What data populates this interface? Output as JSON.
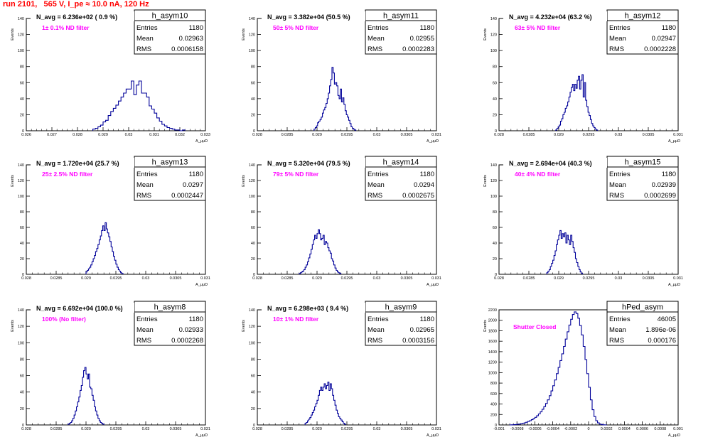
{
  "title": "run 2101,   565 V, I_pe ≈ 10.0 nA, 120 Hz",
  "colors": {
    "title": "#ff0000",
    "hist": "#000099",
    "annotation": "#ff00ff",
    "axis": "#000000"
  },
  "chart_data": [
    {
      "type": "histogram",
      "name": "h_asym10",
      "stats": {
        "entries": "1180",
        "mean": "0.02963",
        "rms": "0.0006158"
      },
      "n_avg": "N_avg = 6.236e+02 ( 0.9 %)",
      "annotation": "1± 0.1% ND filter",
      "ylabel": "Events",
      "xlabel": "A_μμD",
      "xlim": [
        0.026,
        0.033
      ],
      "ylim": [
        0,
        140
      ],
      "yticks": [
        "0",
        "20",
        "40",
        "60",
        "80",
        "100",
        "120",
        "140"
      ],
      "xticks": [
        "0.026",
        "0.027",
        "0.028",
        "0.029",
        "0.03",
        "0.031",
        "0.032",
        "0.033"
      ],
      "bins_x0": 0.0286,
      "bin_width": 0.0001,
      "values": [
        2,
        3,
        5,
        7,
        11,
        13,
        19,
        24,
        28,
        32,
        37,
        42,
        47,
        52,
        52,
        62,
        45,
        57,
        62,
        47,
        47,
        42,
        31,
        27,
        22,
        16,
        12,
        8,
        6,
        4,
        3,
        2,
        1,
        1,
        0,
        1
      ]
    },
    {
      "type": "histogram",
      "name": "h_asym11",
      "stats": {
        "entries": "1180",
        "mean": "0.02955",
        "rms": "0.0002283"
      },
      "n_avg": "N_avg = 3.382e+04 (50.5 %)",
      "annotation": "50± 5% ND filter",
      "ylabel": "Events",
      "xlabel": "A_μμD",
      "xlim": [
        0.028,
        0.031
      ],
      "ylim": [
        0,
        140
      ],
      "yticks": [
        "0",
        "20",
        "40",
        "60",
        "80",
        "100",
        "120",
        "140"
      ],
      "xticks": [
        "0.028",
        "0.0285",
        "0.029",
        "0.0295",
        "0.03",
        "0.0305",
        "0.031"
      ],
      "bins_x0": 0.02895,
      "bin_width": 2e-05,
      "values": [
        2,
        4,
        6,
        10,
        12,
        14,
        17,
        22,
        26,
        29,
        34,
        40,
        47,
        56,
        64,
        79,
        72,
        58,
        60,
        56,
        44,
        40,
        52,
        36,
        41,
        33,
        25,
        20,
        17,
        13,
        9,
        5,
        3,
        2,
        1
      ]
    },
    {
      "type": "histogram",
      "name": "h_asym12",
      "stats": {
        "entries": "1180",
        "mean": "0.02947",
        "rms": "0.0002228"
      },
      "n_avg": "N_avg = 4.232e+04 (63.2 %)",
      "annotation": "63± 5% ND filter",
      "ylabel": "Events",
      "xlabel": "A_μμD",
      "xlim": [
        0.028,
        0.031
      ],
      "ylim": [
        0,
        140
      ],
      "yticks": [
        "0",
        "20",
        "40",
        "60",
        "80",
        "100",
        "120",
        "140"
      ],
      "xticks": [
        "0.028",
        "0.0285",
        "0.029",
        "0.0295",
        "0.03",
        "0.0305",
        "0.031"
      ],
      "bins_x0": 0.02895,
      "bin_width": 2e-05,
      "values": [
        1,
        3,
        5,
        7,
        12,
        15,
        20,
        23,
        28,
        31,
        36,
        42,
        48,
        54,
        58,
        50,
        58,
        53,
        63,
        68,
        52,
        63,
        70,
        42,
        60,
        38,
        30,
        23,
        19,
        14,
        9,
        6,
        4,
        2,
        1
      ]
    },
    {
      "type": "histogram",
      "name": "h_asym13",
      "stats": {
        "entries": "1180",
        "mean": "0.0297",
        "rms": "0.0002447"
      },
      "n_avg": "N_avg = 1.720e+04 (25.7 %)",
      "annotation": "25± 2.5% ND filter",
      "ylabel": "Events",
      "xlabel": "A_μμD",
      "xlim": [
        0.028,
        0.031
      ],
      "ylim": [
        0,
        140
      ],
      "yticks": [
        "0",
        "20",
        "40",
        "60",
        "80",
        "100",
        "120",
        "140"
      ],
      "xticks": [
        "0.028",
        "0.0285",
        "0.029",
        "0.0295",
        "0.03",
        "0.0305",
        "0.031"
      ],
      "bins_x0": 0.029,
      "bin_width": 2e-05,
      "values": [
        3,
        5,
        7,
        9,
        12,
        16,
        20,
        24,
        29,
        33,
        38,
        44,
        49,
        56,
        62,
        56,
        66,
        58,
        53,
        48,
        42,
        35,
        29,
        23,
        18,
        13,
        9,
        6,
        4,
        2,
        1
      ]
    },
    {
      "type": "histogram",
      "name": "h_asym14",
      "stats": {
        "entries": "1180",
        "mean": "0.0294",
        "rms": "0.0002675"
      },
      "n_avg": "N_avg = 5.320e+04 (79.5 %)",
      "annotation": "79± 5% ND filter",
      "ylabel": "Events",
      "xlabel": "A_μμD",
      "xlim": [
        0.028,
        0.031
      ],
      "ylim": [
        0,
        140
      ],
      "yticks": [
        "0",
        "20",
        "40",
        "60",
        "80",
        "100",
        "120",
        "140"
      ],
      "xticks": [
        "0.028",
        "0.0285",
        "0.029",
        "0.0295",
        "0.03",
        "0.0305",
        "0.031"
      ],
      "bins_x0": 0.0287,
      "bin_width": 2e-05,
      "values": [
        1,
        2,
        3,
        4,
        6,
        9,
        12,
        16,
        21,
        26,
        32,
        38,
        44,
        50,
        46,
        52,
        57,
        52,
        44,
        46,
        50,
        38,
        42,
        40,
        34,
        30,
        27,
        20,
        17,
        12,
        8,
        5,
        3,
        2,
        1
      ]
    },
    {
      "type": "histogram",
      "name": "h_asym15",
      "stats": {
        "entries": "1180",
        "mean": "0.02939",
        "rms": "0.0002699"
      },
      "n_avg": "N_avg = 2.694e+04 (40.3 %)",
      "annotation": "40± 4% ND filter",
      "ylabel": "Events",
      "xlabel": "A_μμD",
      "xlim": [
        0.028,
        0.031
      ],
      "ylim": [
        0,
        140
      ],
      "yticks": [
        "0",
        "20",
        "40",
        "60",
        "80",
        "100",
        "120",
        "140"
      ],
      "xticks": [
        "0.028",
        "0.0285",
        "0.029",
        "0.0295",
        "0.03",
        "0.0305",
        "0.031"
      ],
      "bins_x0": 0.0288,
      "bin_width": 2e-05,
      "values": [
        2,
        4,
        6,
        10,
        14,
        18,
        24,
        30,
        38,
        44,
        50,
        56,
        46,
        52,
        48,
        53,
        40,
        50,
        44,
        38,
        50,
        42,
        34,
        28,
        20,
        15,
        10,
        6,
        3,
        1
      ]
    },
    {
      "type": "histogram",
      "name": "h_asym8",
      "stats": {
        "entries": "1180",
        "mean": "0.02933",
        "rms": "0.0002268"
      },
      "n_avg": "N_avg = 6.692e+04 (100.0 %)",
      "annotation": "100% (No filter)",
      "ylabel": "Events",
      "xlabel": "A_μμD",
      "xlim": [
        0.028,
        0.031
      ],
      "ylim": [
        0,
        140
      ],
      "yticks": [
        "0",
        "20",
        "40",
        "60",
        "80",
        "100",
        "120",
        "140"
      ],
      "xticks": [
        "0.028",
        "0.0285",
        "0.029",
        "0.0295",
        "0.03",
        "0.0305",
        "0.031"
      ],
      "bins_x0": 0.0287,
      "bin_width": 2e-05,
      "values": [
        1,
        2,
        3,
        5,
        8,
        12,
        17,
        22,
        28,
        34,
        42,
        48,
        58,
        66,
        70,
        62,
        56,
        62,
        46,
        44,
        36,
        30,
        22,
        17,
        12,
        8,
        5,
        3,
        2,
        1
      ]
    },
    {
      "type": "histogram",
      "name": "h_asym9",
      "stats": {
        "entries": "1180",
        "mean": "0.02965",
        "rms": "0.0003156"
      },
      "n_avg": "N_avg = 6.298e+03 ( 9.4 %)",
      "annotation": "10± 1% ND filter",
      "ylabel": "Events",
      "xlabel": "A_μμD",
      "xlim": [
        0.028,
        0.031
      ],
      "ylim": [
        0,
        140
      ],
      "yticks": [
        "0",
        "20",
        "40",
        "60",
        "80",
        "100",
        "120",
        "140"
      ],
      "xticks": [
        "0.028",
        "0.0285",
        "0.029",
        "0.0295",
        "0.03",
        "0.0305",
        "0.031"
      ],
      "bins_x0": 0.0288,
      "bin_width": 2e-05,
      "values": [
        2,
        3,
        5,
        7,
        9,
        12,
        15,
        18,
        22,
        26,
        30,
        36,
        42,
        46,
        42,
        46,
        50,
        44,
        48,
        52,
        42,
        50,
        44,
        36,
        30,
        24,
        18,
        14,
        10,
        8,
        6,
        4,
        2,
        1
      ]
    },
    {
      "type": "histogram",
      "name": "hPed_asym",
      "stats": {
        "entries": "46005",
        "mean": "1.896e-06",
        "rms": "0.000176"
      },
      "annotation": "Shutter Closed",
      "ylabel": "Events",
      "xlabel": "A_μμD",
      "xlim": [
        -0.001,
        0.001
      ],
      "ylim": [
        0,
        2200
      ],
      "yticks": [
        "0",
        "200",
        "400",
        "600",
        "800",
        "1000",
        "1200",
        "1400",
        "1600",
        "1800",
        "2000",
        "2200"
      ],
      "xticks": [
        "-0.001",
        "-0.0008",
        "-0.0006",
        "-0.0004",
        "-0.0002",
        "0",
        "0.0002",
        "0.0004",
        "0.0006",
        "0.0008",
        "0.001"
      ],
      "bins_x0": -0.00088,
      "bin_width": 2e-05,
      "values": [
        2,
        3,
        5,
        8,
        12,
        16,
        22,
        30,
        40,
        52,
        66,
        82,
        100,
        120,
        145,
        175,
        210,
        250,
        300,
        350,
        410,
        480,
        560,
        650,
        750,
        860,
        980,
        1100,
        1230,
        1360,
        1500,
        1640,
        1780,
        1910,
        2020,
        2110,
        2160,
        2130,
        2040,
        1900,
        1720,
        1500,
        1250,
        980,
        720,
        480,
        290,
        160,
        80,
        40,
        18,
        8,
        3,
        1
      ]
    }
  ]
}
